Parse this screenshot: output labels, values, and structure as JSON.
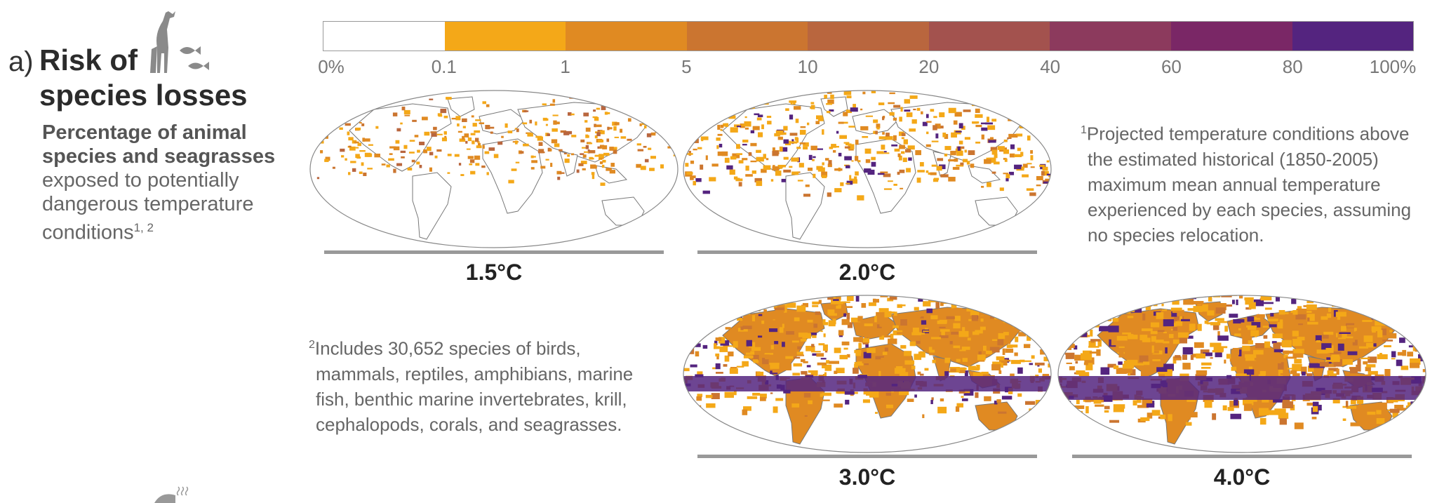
{
  "heading": {
    "letter": "a)",
    "title_line1": "Risk of",
    "title_line2": "species losses",
    "subtitle_bold": "Percentage of animal species and seagrasses",
    "subtitle_rest": "exposed to potentially dangerous temperature conditions",
    "subtitle_sup": "1, 2"
  },
  "legend": {
    "ticks": [
      "0%",
      "0.1",
      "1",
      "5",
      "10",
      "20",
      "40",
      "60",
      "80",
      "100%"
    ],
    "colors": [
      "#ffffff",
      "#f4a818",
      "#e08a22",
      "#cb7530",
      "#b9663e",
      "#a3524e",
      "#8c3a5d",
      "#7a2766",
      "#54247f"
    ]
  },
  "maps": [
    {
      "label": "1.5°C",
      "intensity": 0.2
    },
    {
      "label": "2.0°C",
      "intensity": 0.45
    },
    {
      "label": "3.0°C",
      "intensity": 0.75
    },
    {
      "label": "4.0°C",
      "intensity": 0.95
    }
  ],
  "notes": {
    "note1_sup": "1",
    "note1_lines": [
      "Projected temperature conditions above",
      "the estimated historical (1850-2005)",
      "maximum mean annual temperature",
      "experienced by each species, assuming",
      "no species relocation."
    ],
    "note2_sup": "2",
    "note2_lines": [
      "Includes 30,652 species of birds,",
      "mammals, reptiles, amphibians, marine",
      "fish, benthic marine invertebrates, krill,",
      "cephalopods, corals, and seagrasses."
    ]
  }
}
